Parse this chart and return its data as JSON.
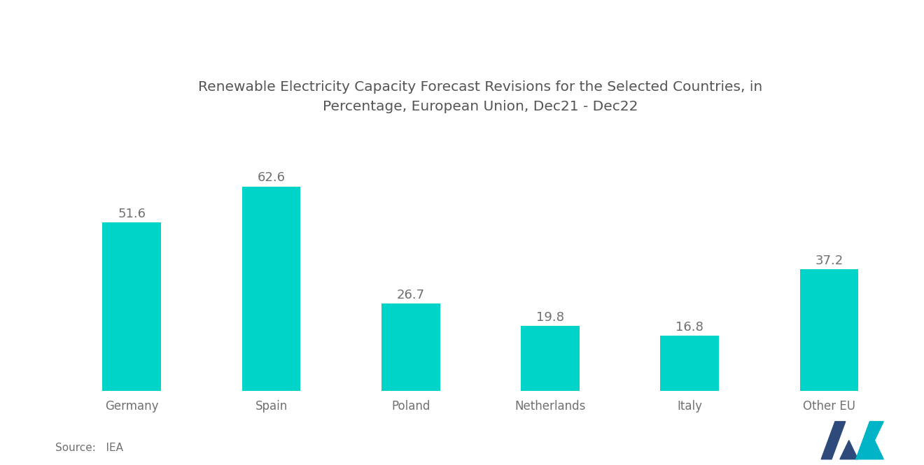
{
  "title": "Renewable Electricity Capacity Forecast Revisions for the Selected Countries, in\nPercentage, European Union, Dec21 - Dec22",
  "categories": [
    "Germany",
    "Spain",
    "Poland",
    "Netherlands",
    "Italy",
    "Other EU"
  ],
  "values": [
    51.6,
    62.6,
    26.7,
    19.8,
    16.8,
    37.2
  ],
  "bar_color": "#00D4C8",
  "label_color": "#707070",
  "title_color": "#555555",
  "axis_label_color": "#707070",
  "source_text": "Source:   IEA",
  "background_color": "#ffffff",
  "title_fontsize": 14.5,
  "label_fontsize": 13,
  "axis_tick_fontsize": 12,
  "source_fontsize": 11,
  "bar_width": 0.42,
  "ylim": [
    0,
    80
  ]
}
